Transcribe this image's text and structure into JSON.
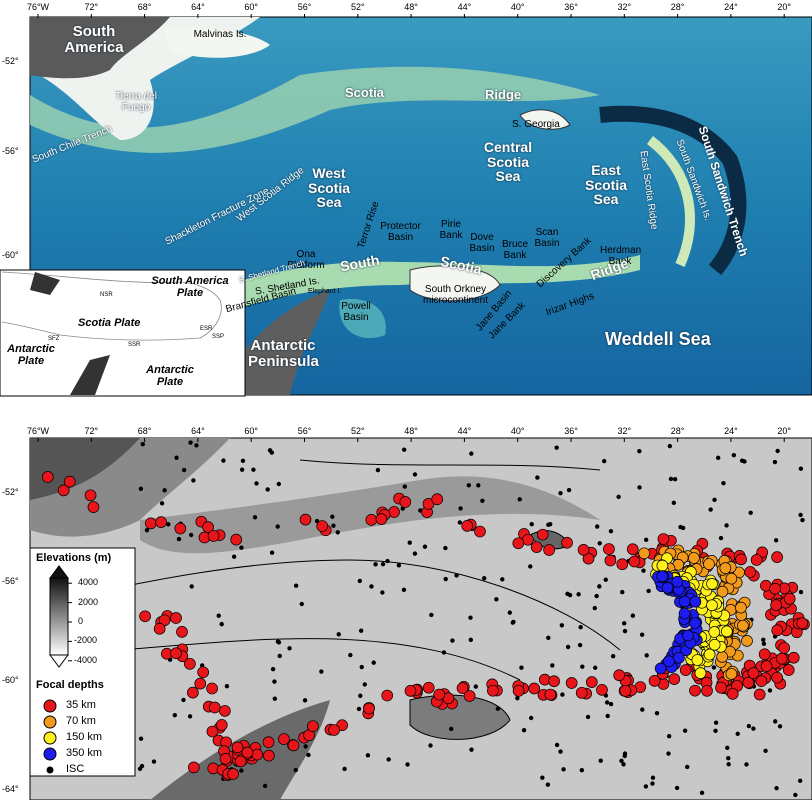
{
  "top_map": {
    "lon_labels": [
      "76°W",
      "72°",
      "68°",
      "64°",
      "60°",
      "56°",
      "52°",
      "48°",
      "44°",
      "40°",
      "36°",
      "32°",
      "28°",
      "24°",
      "20°"
    ],
    "lat_labels": [
      "-52°",
      "-56°",
      "-60°"
    ],
    "places": [
      "South America",
      "Malvinas Is.",
      "Tierra del Fuego",
      "South Chile Trench",
      "Scotia",
      "Ridge",
      "S. Georgia",
      "West Scotia Ridge",
      "West Scotia Sea",
      "Shackleton Fracture Zone",
      "Central Scotia Sea",
      "East Scotia Sea",
      "East Scotia Ridge",
      "South Sandwich Is.",
      "South Sandwich Trench",
      "Terror Rise",
      "Protector Basin",
      "Pirie Bank",
      "Dove Basin",
      "Bruce Bank",
      "Scan Basin",
      "Discovery Bank",
      "Herdman Bank",
      "Ona Platform",
      "South",
      "Scotia",
      "Ridge",
      "S. Shetland Is.",
      "S. Shetland Trench",
      "Elephant I.",
      "Bransfield Basin",
      "Powell Basin",
      "South Orkney microcontinent",
      "Jane Basin",
      "Jane Bank",
      "Irizar Highs",
      "Weddell Sea",
      "Antarctic Peninsula"
    ],
    "inset": {
      "labels": [
        "South America Plate",
        "Scotia Plate",
        "Antarctic Plate",
        "Antarctic Plate",
        "NSR",
        "SSR",
        "ESR",
        "SSP",
        "SFZ"
      ]
    }
  },
  "bottom_map": {
    "lon_labels": [
      "76°W",
      "72°",
      "68°",
      "64°",
      "60°",
      "56°",
      "52°",
      "48°",
      "44°",
      "40°",
      "36°",
      "32°",
      "28°",
      "24°",
      "20°"
    ],
    "lat_labels": [
      "-52°",
      "-56°",
      "-60°",
      "-64°"
    ],
    "legend": {
      "elevation_title": "Elevations (m)",
      "elevation_ticks": [
        4000,
        2000,
        0,
        -2000,
        -4000
      ],
      "depth_title": "Focal depths",
      "depths": [
        {
          "label": "35 km",
          "color": "#e8161b"
        },
        {
          "label": "70 km",
          "color": "#f39a1c"
        },
        {
          "label": "150 km",
          "color": "#fff21a"
        },
        {
          "label": "350 km",
          "color": "#1c1cf0"
        },
        {
          "label": "ISC",
          "color": "#000000"
        }
      ]
    }
  }
}
